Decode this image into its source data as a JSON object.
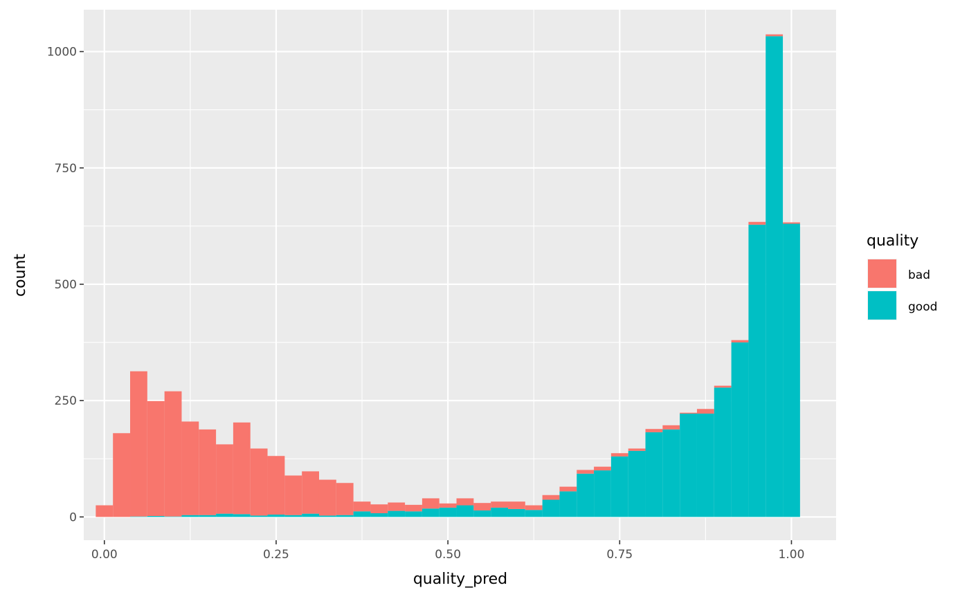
{
  "chart_data": {
    "type": "bar",
    "stacked": true,
    "histogram": true,
    "xlabel": "quality_pred",
    "ylabel": "count",
    "xlim": [
      -0.03,
      1.065
    ],
    "ylim": [
      -50,
      1090
    ],
    "x_ticks": [
      {
        "value": 0,
        "label": "0.00"
      },
      {
        "value": 0.25,
        "label": "0.25"
      },
      {
        "value": 0.5,
        "label": "0.50"
      },
      {
        "value": 0.75,
        "label": "0.75"
      },
      {
        "value": 1,
        "label": "1.00"
      }
    ],
    "y_ticks": [
      {
        "value": 0,
        "label": "0"
      },
      {
        "value": 250,
        "label": "250"
      },
      {
        "value": 500,
        "label": "500"
      },
      {
        "value": 750,
        "label": "750"
      },
      {
        "value": 1000,
        "label": "1000"
      }
    ],
    "grid": true,
    "legend": {
      "title": "quality",
      "position": "right"
    },
    "bin_width": 0.025,
    "bin_centers": [
      0,
      0.025,
      0.05,
      0.075,
      0.1,
      0.125,
      0.15,
      0.175,
      0.2,
      0.225,
      0.25,
      0.275,
      0.3,
      0.325,
      0.35,
      0.375,
      0.4,
      0.425,
      0.45,
      0.475,
      0.5,
      0.525,
      0.55,
      0.575,
      0.6,
      0.625,
      0.65,
      0.675,
      0.7,
      0.725,
      0.75,
      0.775,
      0.8,
      0.825,
      0.85,
      0.875,
      0.9,
      0.925,
      0.95,
      0.975,
      1.0
    ],
    "series": [
      {
        "name": "good",
        "color": "#00BFC4",
        "values": [
          0,
          0,
          1,
          2,
          1,
          4,
          4,
          7,
          6,
          3,
          5,
          4,
          7,
          3,
          4,
          12,
          8,
          13,
          12,
          18,
          20,
          25,
          14,
          20,
          17,
          15,
          37,
          55,
          93,
          100,
          130,
          142,
          182,
          188,
          222,
          222,
          278,
          375,
          628,
          1033,
          630
        ]
      },
      {
        "name": "bad",
        "color": "#F8766D",
        "values": [
          25,
          180,
          312,
          247,
          269,
          201,
          184,
          149,
          197,
          144,
          126,
          85,
          91,
          77,
          69,
          21,
          19,
          18,
          14,
          22,
          9,
          15,
          16,
          13,
          16,
          10,
          10,
          10,
          8,
          8,
          7,
          5,
          7,
          9,
          2,
          10,
          4,
          5,
          6,
          4,
          3
        ]
      }
    ]
  }
}
